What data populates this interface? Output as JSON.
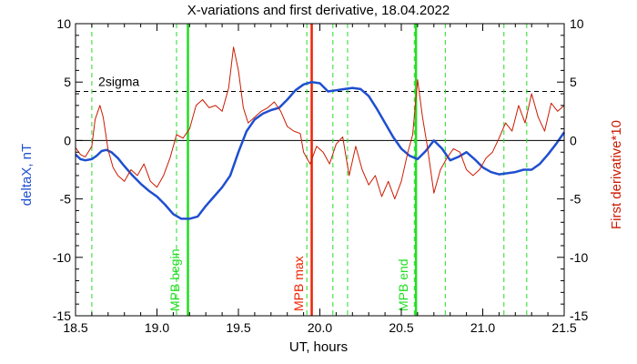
{
  "chart_data": {
    "type": "line",
    "title": "X-variations and first derivative, 18.04.2022",
    "xlabel": "UT, hours",
    "ylabel_left": "deltaX, nT",
    "ylabel_right": "First derivative*10",
    "xlim": [
      18.5,
      21.5
    ],
    "ylim": [
      -15,
      10
    ],
    "xticks": [
      "18.5",
      "19.0",
      "19.5",
      "20.0",
      "20.5",
      "21.0",
      "21.5"
    ],
    "yticks_left": [
      "10",
      "5",
      "0",
      "-5",
      "-10",
      "-15"
    ],
    "yticks_right": [
      "10",
      "5",
      "0",
      "-5",
      "-10",
      "-15"
    ],
    "colors": {
      "deltaX": "#1f4fd0",
      "derivative": "#cc1a00",
      "mpb_boundary": "#22dd22",
      "mpb_max": "#ee2200",
      "dashed_green": "#22dd22"
    },
    "series": [
      {
        "key": "deltaX",
        "x": [
          18.5,
          18.53,
          18.56,
          18.6,
          18.63,
          18.66,
          18.69,
          18.72,
          18.76,
          18.8,
          18.85,
          18.9,
          18.95,
          19.0,
          19.05,
          19.1,
          19.15,
          19.2,
          19.25,
          19.3,
          19.35,
          19.4,
          19.45,
          19.5,
          19.55,
          19.6,
          19.65,
          19.7,
          19.75,
          19.8,
          19.85,
          19.9,
          19.95,
          20.0,
          20.05,
          20.1,
          20.15,
          20.2,
          20.25,
          20.3,
          20.35,
          20.4,
          20.45,
          20.5,
          20.55,
          20.6,
          20.65,
          20.7,
          20.75,
          20.8,
          20.85,
          20.9,
          20.95,
          21.0,
          21.05,
          21.1,
          21.15,
          21.2,
          21.25,
          21.3,
          21.35,
          21.4,
          21.45,
          21.5
        ],
        "y": [
          -1.2,
          -1.6,
          -1.7,
          -1.6,
          -1.3,
          -0.9,
          -0.8,
          -1.0,
          -1.5,
          -2.2,
          -3.0,
          -3.7,
          -4.3,
          -4.8,
          -5.5,
          -6.3,
          -6.7,
          -6.7,
          -6.5,
          -5.6,
          -4.8,
          -4.0,
          -3.0,
          -1.0,
          0.8,
          1.8,
          2.3,
          2.6,
          2.8,
          3.5,
          4.3,
          4.8,
          5.0,
          4.9,
          4.2,
          4.3,
          4.4,
          4.5,
          4.4,
          3.8,
          2.7,
          1.5,
          0.3,
          -0.7,
          -1.3,
          -1.6,
          -0.9,
          0.0,
          -0.7,
          -1.7,
          -1.4,
          -1.0,
          -1.6,
          -2.3,
          -2.7,
          -2.9,
          -2.8,
          -2.7,
          -2.5,
          -2.5,
          -2.0,
          -1.2,
          -0.3,
          0.7
        ]
      },
      {
        "key": "derivative",
        "x": [
          18.5,
          18.53,
          18.56,
          18.6,
          18.62,
          18.65,
          18.67,
          18.7,
          18.73,
          18.76,
          18.8,
          18.84,
          18.88,
          18.92,
          18.96,
          19.0,
          19.04,
          19.08,
          19.12,
          19.16,
          19.2,
          19.24,
          19.28,
          19.32,
          19.36,
          19.4,
          19.44,
          19.47,
          19.5,
          19.53,
          19.56,
          19.6,
          19.64,
          19.68,
          19.72,
          19.76,
          19.8,
          19.84,
          19.88,
          19.9,
          19.94,
          19.98,
          20.02,
          20.06,
          20.1,
          20.14,
          20.18,
          20.22,
          20.26,
          20.3,
          20.34,
          20.38,
          20.42,
          20.46,
          20.5,
          20.54,
          20.57,
          20.6,
          20.63,
          20.66,
          20.7,
          20.74,
          20.78,
          20.82,
          20.86,
          20.9,
          20.94,
          20.98,
          21.02,
          21.06,
          21.1,
          21.14,
          21.18,
          21.22,
          21.26,
          21.3,
          21.34,
          21.38,
          21.42,
          21.46,
          21.5
        ],
        "y": [
          -0.6,
          -1.2,
          -1.4,
          -0.5,
          1.8,
          3.0,
          2.0,
          -0.8,
          -2.3,
          -3.0,
          -3.5,
          -2.5,
          -3.0,
          -2.0,
          -3.5,
          -4.0,
          -3.0,
          -1.5,
          0.5,
          0.2,
          1.0,
          3.0,
          3.5,
          2.8,
          3.0,
          2.5,
          4.5,
          8.0,
          6.0,
          2.8,
          1.5,
          2.0,
          2.5,
          2.8,
          3.3,
          2.5,
          1.2,
          0.8,
          0.6,
          -1.0,
          -2.0,
          -0.5,
          -1.0,
          -2.0,
          -0.3,
          0.3,
          -3.0,
          -0.5,
          -2.5,
          -3.8,
          -3.0,
          -4.8,
          -3.5,
          -5.0,
          -3.5,
          -1.0,
          0.5,
          5.2,
          2.0,
          -0.5,
          -4.5,
          -2.5,
          -1.5,
          -0.7,
          -1.0,
          -2.5,
          -3.0,
          -2.5,
          -1.5,
          -1.0,
          0.2,
          1.5,
          0.8,
          3.0,
          1.5,
          4.0,
          2.0,
          0.8,
          3.2,
          2.5,
          3.0
        ]
      }
    ],
    "sigma_level": 4.2,
    "sigma_label": "2sigma",
    "vlines": [
      {
        "x": 19.19,
        "style": "solid",
        "color": "#22dd22",
        "label": "MPB begin",
        "label_x": 19.11
      },
      {
        "x": 19.95,
        "style": "solid",
        "color": "#ee2200",
        "label": "MPB max",
        "label_x": 19.87
      },
      {
        "x": 20.59,
        "style": "solid",
        "color": "#22dd22",
        "label": "MPB end",
        "label_x": 20.51
      }
    ],
    "dashed_lines": [
      18.6,
      19.12,
      19.92,
      20.08,
      20.17,
      20.58,
      20.77,
      21.13,
      21.27
    ],
    "grid": false
  }
}
